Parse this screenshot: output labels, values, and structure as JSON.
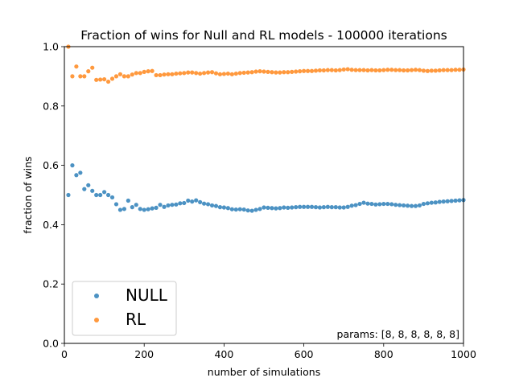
{
  "chart_data": {
    "type": "scatter",
    "title": "Fraction of wins for Null and RL models - 100000 iterations",
    "xlabel": "number of simulations",
    "ylabel": "fraction of wins",
    "xlim": [
      0,
      1000
    ],
    "ylim": [
      0.0,
      1.0
    ],
    "xticks": [
      0,
      200,
      400,
      600,
      800,
      1000
    ],
    "yticks": [
      0.0,
      0.2,
      0.4,
      0.6,
      0.8,
      1.0
    ],
    "xtick_labels": [
      "0",
      "200",
      "400",
      "600",
      "800",
      "1000"
    ],
    "ytick_labels": [
      "0.0",
      "0.2",
      "0.4",
      "0.6",
      "0.8",
      "1.0"
    ],
    "grid": false,
    "legend_position": "lower-left",
    "annotation": "params: [8, 8, 8, 8, 8, 8]",
    "series": [
      {
        "name": "NULL",
        "color": "#1f77b4",
        "x": [
          10,
          20,
          30,
          40,
          50,
          60,
          70,
          80,
          90,
          100,
          110,
          120,
          130,
          140,
          150,
          160,
          170,
          180,
          190,
          200,
          210,
          220,
          230,
          240,
          250,
          260,
          270,
          280,
          290,
          300,
          310,
          320,
          330,
          340,
          350,
          360,
          370,
          380,
          390,
          400,
          410,
          420,
          430,
          440,
          450,
          460,
          470,
          480,
          490,
          500,
          510,
          520,
          530,
          540,
          550,
          560,
          570,
          580,
          590,
          600,
          610,
          620,
          630,
          640,
          650,
          660,
          670,
          680,
          690,
          700,
          710,
          720,
          730,
          740,
          750,
          760,
          770,
          780,
          790,
          800,
          810,
          820,
          830,
          840,
          850,
          860,
          870,
          880,
          890,
          900,
          910,
          920,
          930,
          940,
          950,
          960,
          970,
          980,
          990,
          1000
        ],
        "y": [
          0.5,
          0.6,
          0.567,
          0.575,
          0.52,
          0.533,
          0.514,
          0.5,
          0.5,
          0.51,
          0.5,
          0.492,
          0.469,
          0.45,
          0.453,
          0.481,
          0.459,
          0.467,
          0.453,
          0.45,
          0.452,
          0.455,
          0.457,
          0.467,
          0.46,
          0.465,
          0.467,
          0.468,
          0.472,
          0.473,
          0.481,
          0.478,
          0.482,
          0.476,
          0.471,
          0.469,
          0.465,
          0.463,
          0.459,
          0.458,
          0.456,
          0.452,
          0.451,
          0.452,
          0.451,
          0.448,
          0.447,
          0.45,
          0.453,
          0.458,
          0.457,
          0.456,
          0.455,
          0.456,
          0.458,
          0.457,
          0.458,
          0.459,
          0.46,
          0.46,
          0.46,
          0.46,
          0.459,
          0.458,
          0.459,
          0.46,
          0.459,
          0.459,
          0.458,
          0.458,
          0.46,
          0.464,
          0.466,
          0.47,
          0.474,
          0.471,
          0.47,
          0.468,
          0.469,
          0.47,
          0.47,
          0.469,
          0.467,
          0.466,
          0.465,
          0.464,
          0.463,
          0.463,
          0.465,
          0.47,
          0.472,
          0.474,
          0.475,
          0.477,
          0.478,
          0.479,
          0.48,
          0.481,
          0.482,
          0.483
        ]
      },
      {
        "name": "RL",
        "color": "#ff7f0e",
        "x": [
          10,
          20,
          30,
          40,
          50,
          60,
          70,
          80,
          90,
          100,
          110,
          120,
          130,
          140,
          150,
          160,
          170,
          180,
          190,
          200,
          210,
          220,
          230,
          240,
          250,
          260,
          270,
          280,
          290,
          300,
          310,
          320,
          330,
          340,
          350,
          360,
          370,
          380,
          390,
          400,
          410,
          420,
          430,
          440,
          450,
          460,
          470,
          480,
          490,
          500,
          510,
          520,
          530,
          540,
          550,
          560,
          570,
          580,
          590,
          600,
          610,
          620,
          630,
          640,
          650,
          660,
          670,
          680,
          690,
          700,
          710,
          720,
          730,
          740,
          750,
          760,
          770,
          780,
          790,
          800,
          810,
          820,
          830,
          840,
          850,
          860,
          870,
          880,
          890,
          900,
          910,
          920,
          930,
          940,
          950,
          960,
          970,
          980,
          990,
          1000
        ],
        "y": [
          1.0,
          0.9,
          0.933,
          0.9,
          0.9,
          0.917,
          0.929,
          0.888,
          0.889,
          0.89,
          0.882,
          0.892,
          0.9,
          0.907,
          0.9,
          0.9,
          0.906,
          0.911,
          0.911,
          0.915,
          0.917,
          0.918,
          0.904,
          0.904,
          0.906,
          0.907,
          0.907,
          0.909,
          0.91,
          0.911,
          0.913,
          0.913,
          0.911,
          0.909,
          0.911,
          0.913,
          0.914,
          0.91,
          0.907,
          0.908,
          0.909,
          0.907,
          0.909,
          0.911,
          0.912,
          0.913,
          0.914,
          0.916,
          0.917,
          0.916,
          0.915,
          0.914,
          0.913,
          0.913,
          0.914,
          0.914,
          0.915,
          0.916,
          0.917,
          0.918,
          0.918,
          0.918,
          0.919,
          0.92,
          0.92,
          0.921,
          0.921,
          0.92,
          0.921,
          0.923,
          0.924,
          0.922,
          0.921,
          0.921,
          0.921,
          0.92,
          0.921,
          0.92,
          0.92,
          0.921,
          0.922,
          0.922,
          0.921,
          0.921,
          0.92,
          0.92,
          0.921,
          0.922,
          0.921,
          0.919,
          0.918,
          0.919,
          0.919,
          0.92,
          0.921,
          0.921,
          0.921,
          0.922,
          0.922,
          0.923
        ]
      }
    ]
  }
}
